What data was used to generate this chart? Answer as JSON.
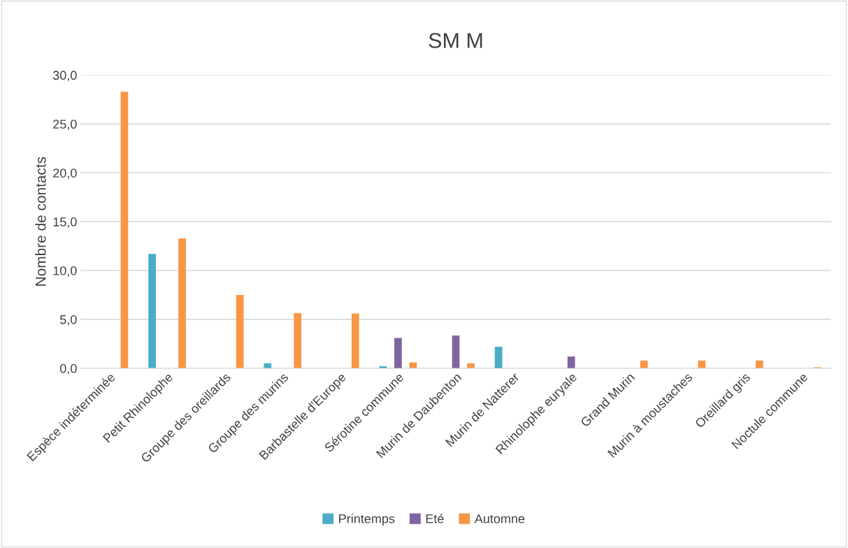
{
  "chart_data": {
    "type": "bar",
    "title": "SM M",
    "ylabel": "Nombre de contacts",
    "categories": [
      "Espèce indéterminée",
      "Petit Rhinolophe",
      "Groupe des oreillards",
      "Groupe des murins",
      "Barbastelle d'Europe",
      "Sérotine commune",
      "Murin de Daubenton",
      "Murin de Natterer",
      "Rhinolophe euryale",
      "Grand Murin",
      "Murin à moustaches",
      "Oreillard gris",
      "Noctule commune"
    ],
    "series": [
      {
        "name": "Printemps",
        "color": "#4bacc6",
        "values": [
          null,
          11.7,
          null,
          0.5,
          null,
          0.2,
          null,
          2.2,
          null,
          null,
          null,
          null,
          null
        ]
      },
      {
        "name": "Eté",
        "color": "#8064a2",
        "values": [
          null,
          null,
          null,
          null,
          null,
          3.1,
          3.35,
          null,
          1.2,
          null,
          null,
          null,
          null
        ]
      },
      {
        "name": "Automne",
        "color": "#f79646",
        "values": [
          28.3,
          13.3,
          7.5,
          5.65,
          5.6,
          0.6,
          0.5,
          null,
          null,
          0.8,
          0.8,
          0.8,
          0.1
        ]
      }
    ],
    "ylim": [
      0,
      30
    ],
    "yticks": [
      {
        "value": 0,
        "label": "0,0"
      },
      {
        "value": 5,
        "label": "5,0"
      },
      {
        "value": 10,
        "label": "10,0"
      },
      {
        "value": 15,
        "label": "15,0"
      },
      {
        "value": 20,
        "label": "20,0"
      },
      {
        "value": 25,
        "label": "25,0"
      },
      {
        "value": 30,
        "label": "30,0"
      }
    ],
    "grid": "y",
    "legend": "bottom"
  }
}
